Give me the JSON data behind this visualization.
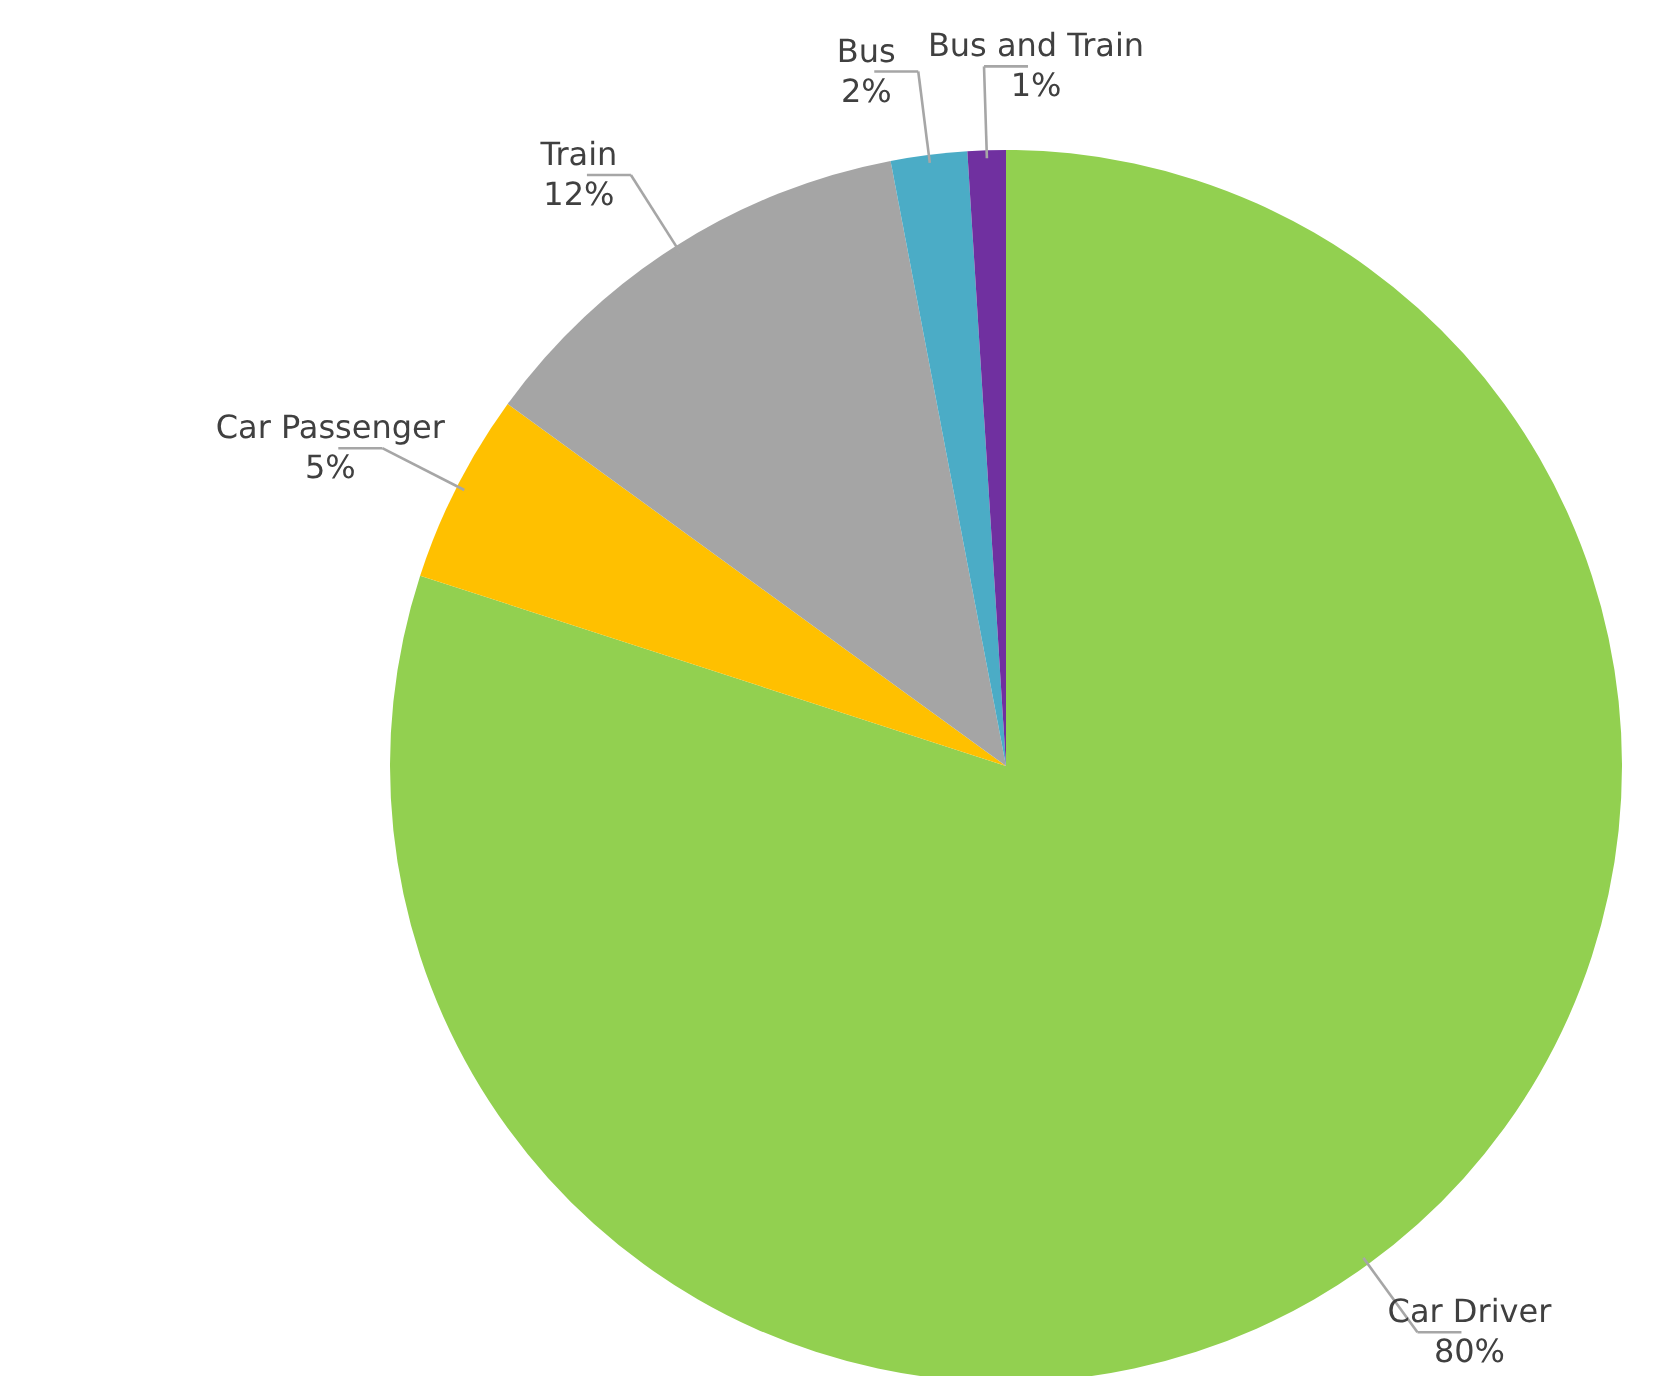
{
  "chart_data": {
    "type": "pie",
    "categories": [
      "Car Driver",
      "Car Passenger",
      "Train",
      "Bus",
      "Bus and Train"
    ],
    "values": [
      80,
      5,
      12,
      2,
      1
    ],
    "colors": [
      "#92d050",
      "#ffc000",
      "#a5a5a5",
      "#4bacc6",
      "#7030a0"
    ],
    "value_labels": [
      "80%",
      "5%",
      "12%",
      "2%",
      "1%"
    ]
  }
}
